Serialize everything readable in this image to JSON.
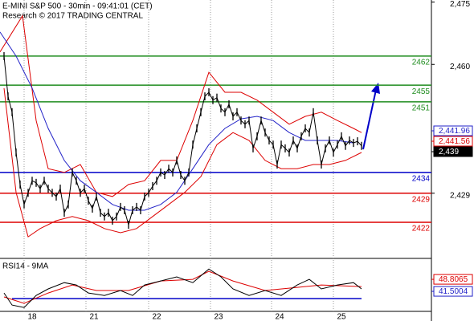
{
  "chart_data": [
    {
      "type": "line",
      "title": "E-MINI S&P 500 - 30min - 09:41:01 (CET)",
      "subtitle": "Research © 2017 TRADING CENTRAL",
      "xlim": [
        -1,
        106.4
      ],
      "ylim": [
        2413.7,
        2475.5
      ],
      "xticks": [
        {
          "value": 7,
          "label": "18"
        },
        {
          "value": 22.4,
          "label": "21"
        },
        {
          "value": 38,
          "label": "22"
        },
        {
          "value": 53.4,
          "label": "23"
        },
        {
          "value": 68.6,
          "label": "24"
        },
        {
          "value": 84,
          "label": "25"
        }
      ],
      "yticks": [
        {
          "value": 2475,
          "label": "2,475"
        },
        {
          "value": 2460,
          "label": "2,460"
        },
        {
          "value": 2429,
          "label": "2,429"
        }
      ],
      "series": [
        {
          "color": "#000000",
          "values": [
            2462.0,
            2452.3,
            2448.5,
            2438.8,
            2431.1,
            2426.3,
            2429.1,
            2432.0,
            2431.5,
            2430.1,
            2432.0,
            2430.1,
            2429.1,
            2428.2,
            2430.1,
            2424.3,
            2426.3,
            2434.0,
            2432.0,
            2429.1,
            2430.1,
            2427.2,
            2425.3,
            2428.2,
            2424.3,
            2423.4,
            2424.3,
            2422.4,
            2423.4,
            2425.7,
            2424.9,
            2421.4,
            2424.9,
            2425.7,
            2424.9,
            2428.2,
            2429.1,
            2430.7,
            2432.0,
            2434.0,
            2433.4,
            2434.9,
            2434.0,
            2436.9,
            2433.4,
            2432.0,
            2434.0,
            2440.7,
            2444.6,
            2448.5,
            2452.3,
            2453.3,
            2451.4,
            2452.0,
            2449.4,
            2448.5,
            2450.4,
            2447.5,
            2448.5,
            2446.5,
            2445.6,
            2446.5,
            2439.8,
            2442.7,
            2446.5,
            2443.6,
            2441.7,
            2440.7,
            2435.9,
            2440.7,
            2439.8,
            2438.8,
            2441.7,
            2439.8,
            2442.7,
            2444.6,
            2443.6,
            2448.5,
            2441.7,
            2435.9,
            2439.8,
            2441.7,
            2438.8,
            2440.7,
            2442.7,
            2440.4,
            2441.7,
            2441.1,
            2441.5,
            2440.4
          ]
        },
        {
          "color": "#dd0000",
          "x": [
            -1,
            4.6,
            8,
            11,
            15,
            19,
            23,
            27,
            31,
            35,
            39,
            43,
            47,
            51,
            55,
            59,
            63,
            67,
            71,
            75,
            79,
            83,
            87,
            89
          ],
          "values": [
            2463.0,
            2471.7,
            2446.5,
            2434.9,
            2434.0,
            2435.9,
            2429.2,
            2428.2,
            2431.1,
            2432.0,
            2436.9,
            2436.9,
            2446.5,
            2458.1,
            2453.3,
            2453.3,
            2451.4,
            2448.5,
            2445.6,
            2447.5,
            2448.5,
            2446.5,
            2444.6,
            2443.6
          ]
        },
        {
          "color": "#dd0000",
          "x": [
            0,
            3,
            6,
            9,
            13,
            17,
            21,
            25,
            29,
            33,
            37,
            41,
            45,
            49,
            53,
            57,
            61,
            65,
            69,
            73,
            77,
            81,
            85,
            89
          ],
          "values": [
            2454.3,
            2429.2,
            2418.5,
            2420.5,
            2422.4,
            2423.4,
            2422.4,
            2420.5,
            2419.5,
            2420.5,
            2423.4,
            2426.3,
            2429.2,
            2433.0,
            2440.7,
            2443.6,
            2441.7,
            2436.9,
            2434.9,
            2434.9,
            2435.9,
            2435.9,
            2436.9,
            2438.8
          ]
        },
        {
          "color": "#2323c8",
          "x": [
            -1,
            3,
            7,
            11,
            15,
            19,
            23,
            27,
            31,
            35,
            39,
            43,
            47,
            51,
            55,
            59,
            63,
            67,
            71,
            75,
            79,
            83,
            87
          ],
          "values": [
            2467.8,
            2462.0,
            2454.3,
            2444.6,
            2436.9,
            2432.0,
            2429.2,
            2426.3,
            2424.9,
            2424.9,
            2426.3,
            2429.2,
            2434.9,
            2440.7,
            2444.6,
            2446.9,
            2447.5,
            2446.5,
            2443.6,
            2441.7,
            2441.7,
            2441.7,
            2441.1
          ]
        }
      ],
      "levels": [
        {
          "value": 2462,
          "color": "#1e8c1e"
        },
        {
          "value": 2455,
          "color": "#1e8c1e"
        },
        {
          "value": 2451,
          "color": "#1e8c1e"
        },
        {
          "value": 2434,
          "color": "#0000c8"
        },
        {
          "value": 2429,
          "color": "#dd0000"
        },
        {
          "value": 2422,
          "color": "#dd0000"
        }
      ],
      "price_tags": [
        {
          "value": 2441.96,
          "label": "2,441.96",
          "color": "#2323c8"
        },
        {
          "value": 2441.56,
          "label": "2,441.56",
          "color": "#dd0000"
        },
        {
          "value": 2439,
          "label": "2,439",
          "color": "#000000"
        }
      ]
    },
    {
      "type": "line",
      "title": "RSI14 - 9MA",
      "ylim": [
        30.8,
        58.6
      ],
      "support": 37.1,
      "series": [
        {
          "color": "#000000",
          "x": [
            0,
            2,
            5,
            8,
            11,
            15,
            18,
            21,
            25,
            29,
            32,
            35,
            39,
            43,
            47,
            51,
            54,
            57,
            61,
            65,
            69,
            73,
            76,
            79,
            83,
            87,
            89
          ],
          "values": [
            40.5,
            33.2,
            31.7,
            39.0,
            43.0,
            46.8,
            45.4,
            40.5,
            39.0,
            42.0,
            39.0,
            45.4,
            47.8,
            50.3,
            46.8,
            55.1,
            50.3,
            43.0,
            39.0,
            42.0,
            39.0,
            45.4,
            48.8,
            43.0,
            45.4,
            46.8,
            43.0
          ]
        },
        {
          "color": "#dd0000",
          "x": [
            0,
            5,
            11,
            17,
            23,
            31,
            39,
            47,
            51,
            57,
            65,
            73,
            79,
            89
          ],
          "values": [
            38.1,
            34.2,
            40.5,
            45.4,
            42.0,
            42.0,
            47.8,
            48.8,
            53.7,
            47.8,
            42.0,
            43.9,
            45.4,
            44.4
          ]
        }
      ],
      "price_tags": [
        {
          "value": 48.8065,
          "label": "48.8065",
          "color": "#dd0000"
        },
        {
          "value": 41.5004,
          "label": "41.5004",
          "color": "#2323c8"
        }
      ]
    }
  ]
}
